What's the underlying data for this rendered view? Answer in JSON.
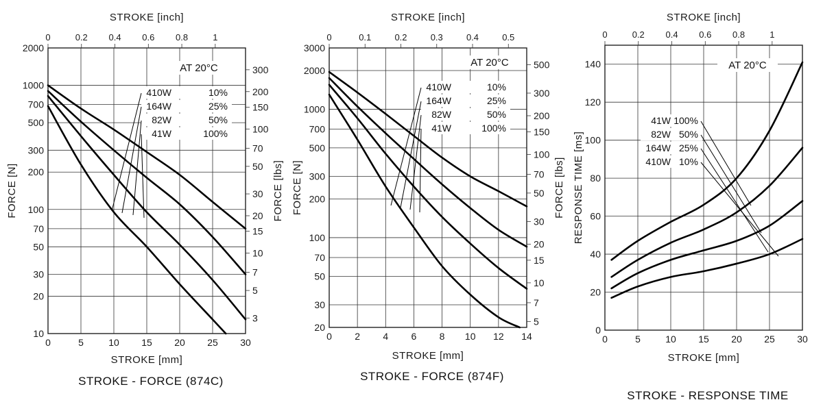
{
  "chart_data": [
    {
      "type": "line",
      "title": "STROKE - FORCE (874C)",
      "xlabel": "STROKE [mm]",
      "ylabel": "FORCE [N]",
      "y2label": "FORCE [lbs]",
      "x2label": "STROKE [inch]",
      "annotation": "AT 20°C",
      "yscale": "log",
      "xlim": [
        0,
        30
      ],
      "ylim": [
        10,
        2000
      ],
      "xticks": [
        "0",
        "5",
        "10",
        "15",
        "20",
        "25",
        "30"
      ],
      "yticks": [
        10,
        20,
        30,
        50,
        70,
        100,
        200,
        300,
        500,
        700,
        1000,
        2000
      ],
      "x2ticks": [
        "0",
        "0.2",
        "0.4",
        "0.6",
        "0.8",
        "1"
      ],
      "y2ticks": [
        "3",
        "5",
        "7",
        "10",
        "15",
        "20",
        "30",
        "50",
        "70",
        "100",
        "150",
        "200",
        "300"
      ],
      "series": [
        {
          "name": "410W 10%",
          "x": [
            0,
            5,
            10,
            15,
            20,
            25,
            30
          ],
          "y": [
            1000,
            650,
            440,
            290,
            190,
            115,
            70
          ]
        },
        {
          "name": "164W 25%",
          "x": [
            0,
            5,
            10,
            15,
            20,
            25,
            30
          ],
          "y": [
            900,
            510,
            300,
            180,
            110,
            60,
            30
          ]
        },
        {
          "name": "82W 50%",
          "x": [
            0,
            5,
            10,
            15,
            20,
            25,
            30
          ],
          "y": [
            820,
            390,
            190,
            95,
            52,
            27,
            13
          ]
        },
        {
          "name": "41W 100%",
          "x": [
            0,
            5,
            10,
            15,
            20,
            25,
            27
          ],
          "y": [
            680,
            230,
            95,
            50,
            25,
            13,
            10
          ]
        }
      ]
    },
    {
      "type": "line",
      "title": "STROKE - FORCE (874F)",
      "xlabel": "STROKE [mm]",
      "ylabel": "FORCE [N]",
      "y2label": "FORCE [lbs]",
      "x2label": "STROKE [inch]",
      "annotation": "AT 20°C",
      "yscale": "log",
      "xlim": [
        0,
        14
      ],
      "ylim": [
        20,
        3000
      ],
      "xticks": [
        "0",
        "2",
        "4",
        "6",
        "8",
        "10",
        "12",
        "14"
      ],
      "yticks": [
        20,
        30,
        50,
        70,
        100,
        200,
        300,
        500,
        700,
        1000,
        2000,
        3000
      ],
      "x2ticks": [
        "0",
        "0.1",
        "0.2",
        "0.3",
        "0.4",
        "0.5"
      ],
      "y2ticks": [
        "5",
        "7",
        "10",
        "15",
        "20",
        "30",
        "50",
        "70",
        "100",
        "150",
        "200",
        "300",
        "500"
      ],
      "series": [
        {
          "name": "410W 10%",
          "x": [
            0,
            2,
            4,
            6,
            8,
            10,
            12,
            14
          ],
          "y": [
            1950,
            1350,
            920,
            620,
            420,
            300,
            230,
            175
          ]
        },
        {
          "name": "164W 25%",
          "x": [
            0,
            2,
            4,
            6,
            8,
            10,
            12,
            14
          ],
          "y": [
            1750,
            1050,
            650,
            410,
            260,
            170,
            115,
            85
          ]
        },
        {
          "name": "82W 50%",
          "x": [
            0,
            2,
            4,
            6,
            8,
            10,
            12,
            14
          ],
          "y": [
            1550,
            850,
            450,
            250,
            145,
            90,
            58,
            40
          ]
        },
        {
          "name": "41W 100%",
          "x": [
            0,
            2,
            4,
            6,
            8,
            10,
            12,
            13.5
          ],
          "y": [
            1300,
            580,
            250,
            120,
            60,
            36,
            24,
            20
          ]
        }
      ]
    },
    {
      "type": "line",
      "title": "STROKE - RESPONSE TIME",
      "xlabel": "STROKE [mm]",
      "ylabel": "RESPONSE TIME [ms]",
      "x2label": "STROKE [inch]",
      "annotation": "AT 20°C",
      "yscale": "linear",
      "xlim": [
        0,
        30
      ],
      "ylim": [
        0,
        150
      ],
      "xticks": [
        "0",
        "5",
        "10",
        "15",
        "20",
        "25",
        "30"
      ],
      "yticks": [
        "0",
        "20",
        "40",
        "60",
        "80",
        "100",
        "120",
        "140"
      ],
      "x2ticks": [
        "0",
        "0.2",
        "0.4",
        "0.6",
        "0.8",
        "1"
      ],
      "series": [
        {
          "name": "41W 100%",
          "x": [
            1,
            5,
            10,
            15,
            20,
            25,
            30
          ],
          "y": [
            37,
            47,
            57,
            66,
            80,
            105,
            141
          ]
        },
        {
          "name": "82W 50%",
          "x": [
            1,
            5,
            10,
            15,
            20,
            25,
            30
          ],
          "y": [
            28,
            37,
            46,
            53,
            62,
            76,
            96
          ]
        },
        {
          "name": "164W 25%",
          "x": [
            1,
            5,
            10,
            15,
            20,
            25,
            30
          ],
          "y": [
            22,
            30,
            37,
            42,
            47,
            55,
            68
          ]
        },
        {
          "name": "410W 10%",
          "x": [
            1,
            5,
            10,
            15,
            20,
            25,
            30
          ],
          "y": [
            17,
            23,
            28,
            31,
            35,
            40,
            48
          ]
        }
      ]
    }
  ]
}
